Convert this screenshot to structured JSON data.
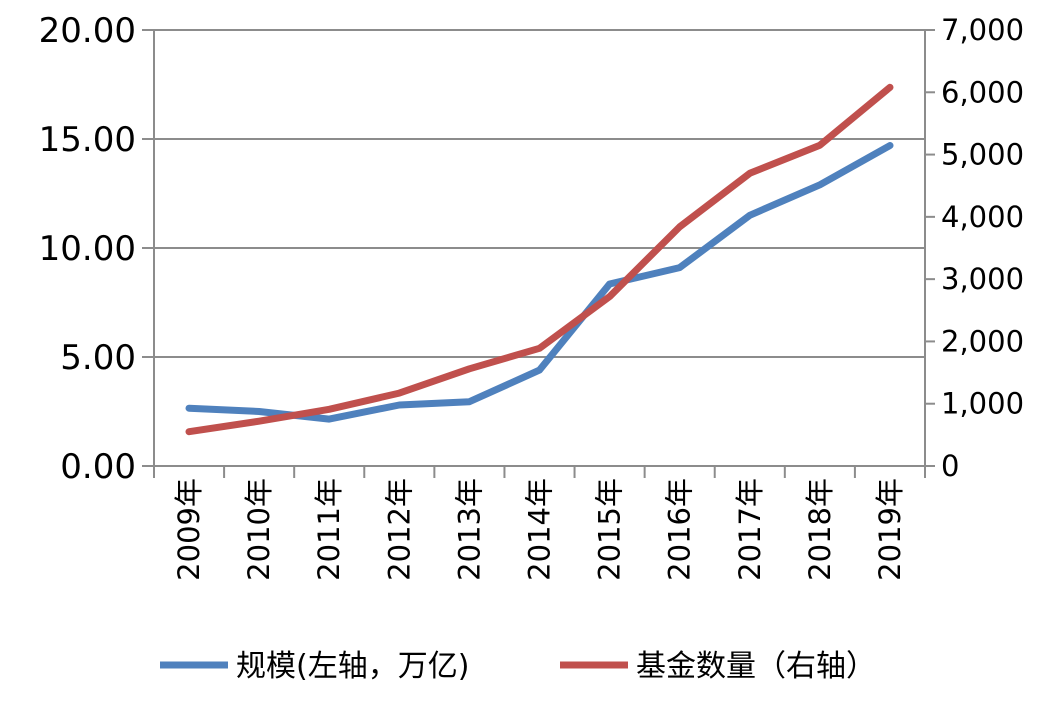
{
  "chart_data": {
    "type": "line",
    "categories": [
      "2009年",
      "2010年",
      "2011年",
      "2012年",
      "2013年",
      "2014年",
      "2015年",
      "2016年",
      "2017年",
      "2018年",
      "2019年"
    ],
    "series": [
      {
        "name": "规模(左轴，万亿)",
        "axis": "left",
        "color": "#4f81bd",
        "values": [
          2.65,
          2.5,
          2.15,
          2.8,
          2.95,
          4.4,
          8.35,
          9.1,
          11.5,
          12.9,
          14.7
        ]
      },
      {
        "name": "基金数量（右轴）",
        "axis": "right",
        "color": "#c0504d",
        "values": [
          550,
          720,
          910,
          1170,
          1560,
          1890,
          2720,
          3840,
          4700,
          5150,
          6080
        ]
      }
    ],
    "left_axis": {
      "ylim": [
        0,
        20
      ],
      "ticks": [
        0,
        5,
        10,
        15,
        20
      ],
      "tick_labels": [
        "0.00",
        "5.00",
        "10.00",
        "15.00",
        "20.00"
      ]
    },
    "right_axis": {
      "ylim": [
        0,
        7000
      ],
      "ticks": [
        0,
        1000,
        2000,
        3000,
        4000,
        5000,
        6000,
        7000
      ],
      "tick_labels": [
        "0",
        "1,000",
        "2,000",
        "3,000",
        "4,000",
        "5,000",
        "6,000",
        "7,000"
      ]
    },
    "grid": true,
    "legend_position": "bottom",
    "title": "",
    "xlabel": "",
    "ylabel": ""
  }
}
